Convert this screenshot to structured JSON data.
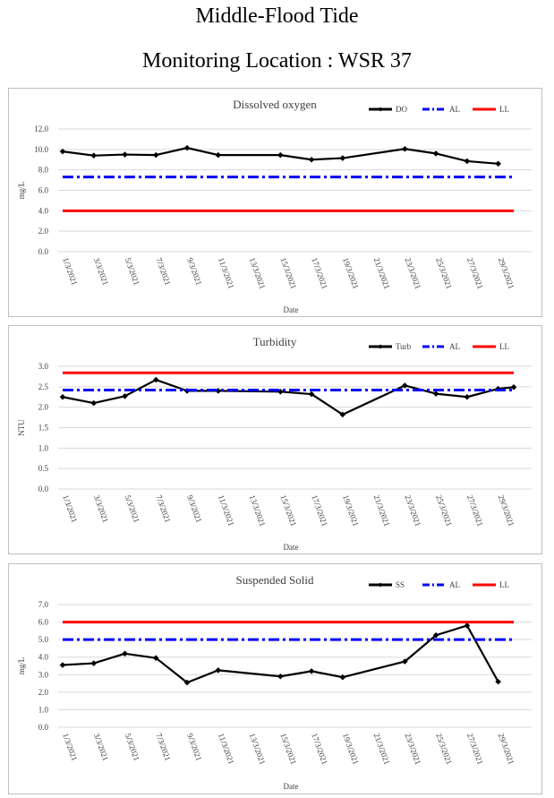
{
  "header": {
    "title": "Middle-Flood Tide",
    "subtitle": "Monitoring Location : WSR 37"
  },
  "colors": {
    "series": "#000000",
    "al": "#0000ff",
    "ll": "#ff0000",
    "grid": "#d9d9d9"
  },
  "chart_data": [
    {
      "type": "line",
      "title": "Dissolved oxygen",
      "xlabel": "Date",
      "ylabel": "mg/L",
      "ylim": [
        0,
        12
      ],
      "ytick_step": 2,
      "ytick_decimals": 1,
      "grid": true,
      "legend_position": "top-right",
      "x_ticks": [
        "1/3/2021",
        "3/3/2021",
        "5/3/2021",
        "7/3/2021",
        "9/3/2021",
        "11/3/2021",
        "13/3/2021",
        "15/3/2021",
        "17/3/2021",
        "19/3/2021",
        "21/3/2021",
        "23/3/2021",
        "25/3/2021",
        "27/3/2021",
        "29/3/2021"
      ],
      "x_dates": [
        1,
        30
      ],
      "series": [
        {
          "name": "DO",
          "style": "measured",
          "x": [
            "1/3/2021",
            "3/3/2021",
            "5/3/2021",
            "7/3/2021",
            "9/3/2021",
            "11/3/2021",
            "15/3/2021",
            "17/3/2021",
            "19/3/2021",
            "23/3/2021",
            "25/3/2021",
            "27/3/2021",
            "29/3/2021"
          ],
          "values": [
            9.8,
            9.4,
            9.5,
            9.45,
            10.15,
            9.45,
            9.45,
            9.0,
            9.15,
            10.05,
            9.6,
            8.85,
            8.6
          ]
        },
        {
          "name": "AL",
          "style": "dashdot",
          "values": [
            7.3
          ]
        },
        {
          "name": "LL",
          "style": "limit",
          "values": [
            4.0
          ]
        }
      ]
    },
    {
      "type": "line",
      "title": "Turbidity",
      "xlabel": "Date",
      "ylabel": "NTU",
      "ylim": [
        0,
        3
      ],
      "ytick_step": 0.5,
      "ytick_decimals": 1,
      "grid": true,
      "legend_position": "top-right",
      "x_ticks": [
        "1/3/2021",
        "3/3/2021",
        "5/3/2021",
        "7/3/2021",
        "9/3/2021",
        "11/3/2021",
        "13/3/2021",
        "15/3/2021",
        "17/3/2021",
        "19/3/2021",
        "21/3/2021",
        "23/3/2021",
        "25/3/2021",
        "27/3/2021",
        "29/3/2021"
      ],
      "x_dates": [
        1,
        30
      ],
      "series": [
        {
          "name": "Turb",
          "style": "measured",
          "x": [
            "1/3/2021",
            "3/3/2021",
            "5/3/2021",
            "7/3/2021",
            "9/3/2021",
            "11/3/2021",
            "15/3/2021",
            "17/3/2021",
            "19/3/2021",
            "23/3/2021",
            "25/3/2021",
            "27/3/2021",
            "29/3/2021",
            "30/3/2021"
          ],
          "values": [
            2.25,
            2.1,
            2.27,
            2.67,
            2.4,
            2.4,
            2.38,
            2.32,
            1.82,
            2.53,
            2.33,
            2.25,
            2.45,
            2.49
          ]
        },
        {
          "name": "AL",
          "style": "dashdot",
          "values": [
            2.42
          ]
        },
        {
          "name": "LL",
          "style": "limit",
          "values": [
            2.84
          ]
        }
      ]
    },
    {
      "type": "line",
      "title": "Suspended Solid",
      "xlabel": "Date",
      "ylabel": "mg/L",
      "ylim": [
        0,
        7
      ],
      "ytick_step": 1,
      "ytick_decimals": 1,
      "grid": true,
      "legend_position": "top-right",
      "x_ticks": [
        "1/3/2021",
        "3/3/2021",
        "5/3/2021",
        "7/3/2021",
        "9/3/2021",
        "11/3/2021",
        "13/3/2021",
        "15/3/2021",
        "17/3/2021",
        "19/3/2021",
        "21/3/2021",
        "23/3/2021",
        "25/3/2021",
        "27/3/2021",
        "29/3/2021"
      ],
      "x_dates": [
        1,
        30
      ],
      "series": [
        {
          "name": "SS",
          "style": "measured",
          "x": [
            "1/3/2021",
            "3/3/2021",
            "5/3/2021",
            "7/3/2021",
            "9/3/2021",
            "11/3/2021",
            "15/3/2021",
            "17/3/2021",
            "19/3/2021",
            "23/3/2021",
            "25/3/2021",
            "27/3/2021",
            "29/3/2021"
          ],
          "values": [
            3.55,
            3.65,
            4.2,
            3.95,
            2.55,
            3.25,
            2.9,
            3.2,
            2.85,
            3.75,
            5.25,
            5.8,
            2.6
          ]
        },
        {
          "name": "AL",
          "style": "dashdot",
          "values": [
            5.0
          ]
        },
        {
          "name": "LL",
          "style": "limit",
          "values": [
            6.0
          ]
        }
      ]
    }
  ]
}
